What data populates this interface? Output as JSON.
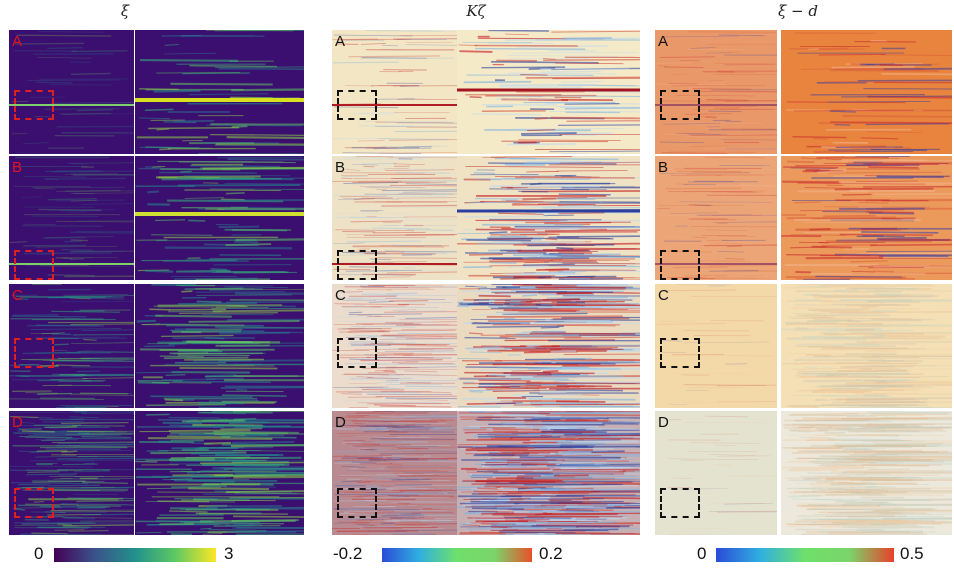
{
  "columns": [
    {
      "title": "ξ",
      "colorbar": {
        "min": "0",
        "max": "3",
        "colors": [
          "#440154",
          "#3b528b",
          "#21918c",
          "#5ec962",
          "#fde725"
        ]
      }
    },
    {
      "title": "Kζ",
      "colorbar": {
        "min": "-0.2",
        "max": "0.2",
        "colors": [
          "#2b4bd8",
          "#2fb0e0",
          "#6fe06a",
          "#7bd46a",
          "#e8502a"
        ]
      }
    },
    {
      "title": "ξ − d",
      "colorbar": {
        "min": "0",
        "max": "0.5",
        "colors": [
          "#2b4bd8",
          "#2fb0e0",
          "#6fe06a",
          "#7bd46a",
          "#e8402a"
        ]
      }
    }
  ],
  "row_labels": [
    "A",
    "B",
    "C",
    "D"
  ],
  "colors": {
    "viridis_bg": "#3b0f70",
    "viridis_dark": "#45115c",
    "red_label": "#e0141e",
    "black_label": "#111111",
    "red_box": "#e02020",
    "black_box": "#111111",
    "kzeta_bg": "#efe4c8",
    "xid_bgA": "#e9986a",
    "xid_bgB": "#eca577",
    "xid_bgC": "#f3d8a8",
    "xid_bgD": "#e3e3cf"
  }
}
